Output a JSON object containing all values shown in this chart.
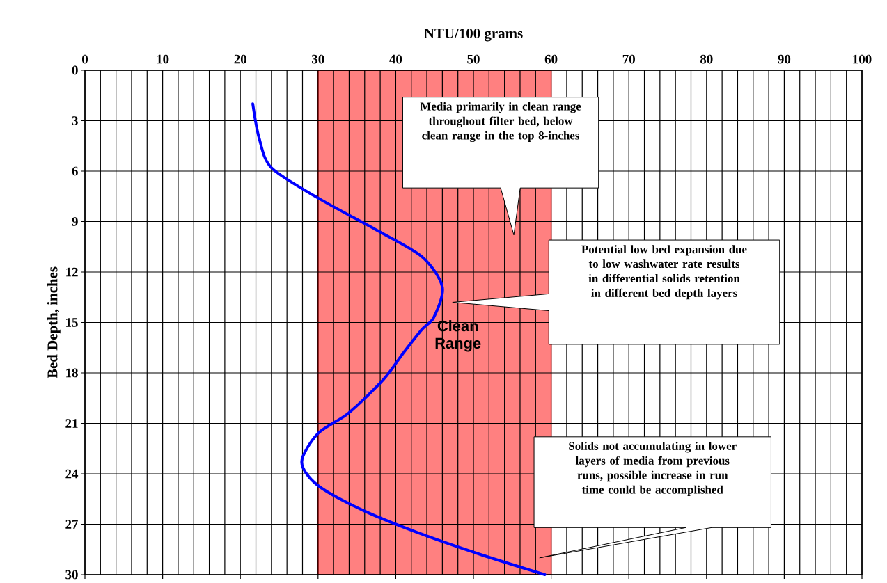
{
  "chart_data": {
    "type": "line",
    "xlabel": "NTU/100 grams",
    "ylabel": "Bed Depth, inches",
    "xlim": [
      0,
      100
    ],
    "xticks": [
      0,
      10,
      20,
      30,
      40,
      50,
      60,
      70,
      80,
      90,
      100
    ],
    "ylim": [
      30,
      0
    ],
    "yticks": [
      0,
      3,
      6,
      9,
      12,
      15,
      18,
      21,
      24,
      27,
      30
    ],
    "grid": true,
    "series": [
      {
        "color": "#0000ff",
        "x": [
          21.6,
          22.4,
          24.0,
          30.0,
          37.5,
          43.4,
          46.0,
          44.9,
          43.4,
          41.0,
          38.4,
          33.9,
          30.0,
          27.9,
          30.0,
          35.9,
          43.4,
          50.9,
          59.2
        ],
        "values": [
          2.0,
          4.0,
          5.8,
          7.6,
          9.5,
          11.1,
          12.9,
          14.7,
          15.4,
          16.8,
          18.4,
          20.4,
          21.6,
          23.3,
          24.7,
          26.2,
          27.6,
          28.8,
          30.0
        ]
      }
    ],
    "bands": [
      {
        "axis": "x",
        "from": 30,
        "to": 60,
        "label": "Clean Range",
        "color": "#ff8080"
      }
    ],
    "annotations": [
      "Media primarily in clean range throughout filter bed, below clean range in the top 8-inches",
      "Potential low bed expansion due to low washwater rate results in differential solids retention in different bed depth layers",
      "Solids not accumulating in lower layers of media from previous runs, possible increase in run time could be accomplished"
    ]
  }
}
